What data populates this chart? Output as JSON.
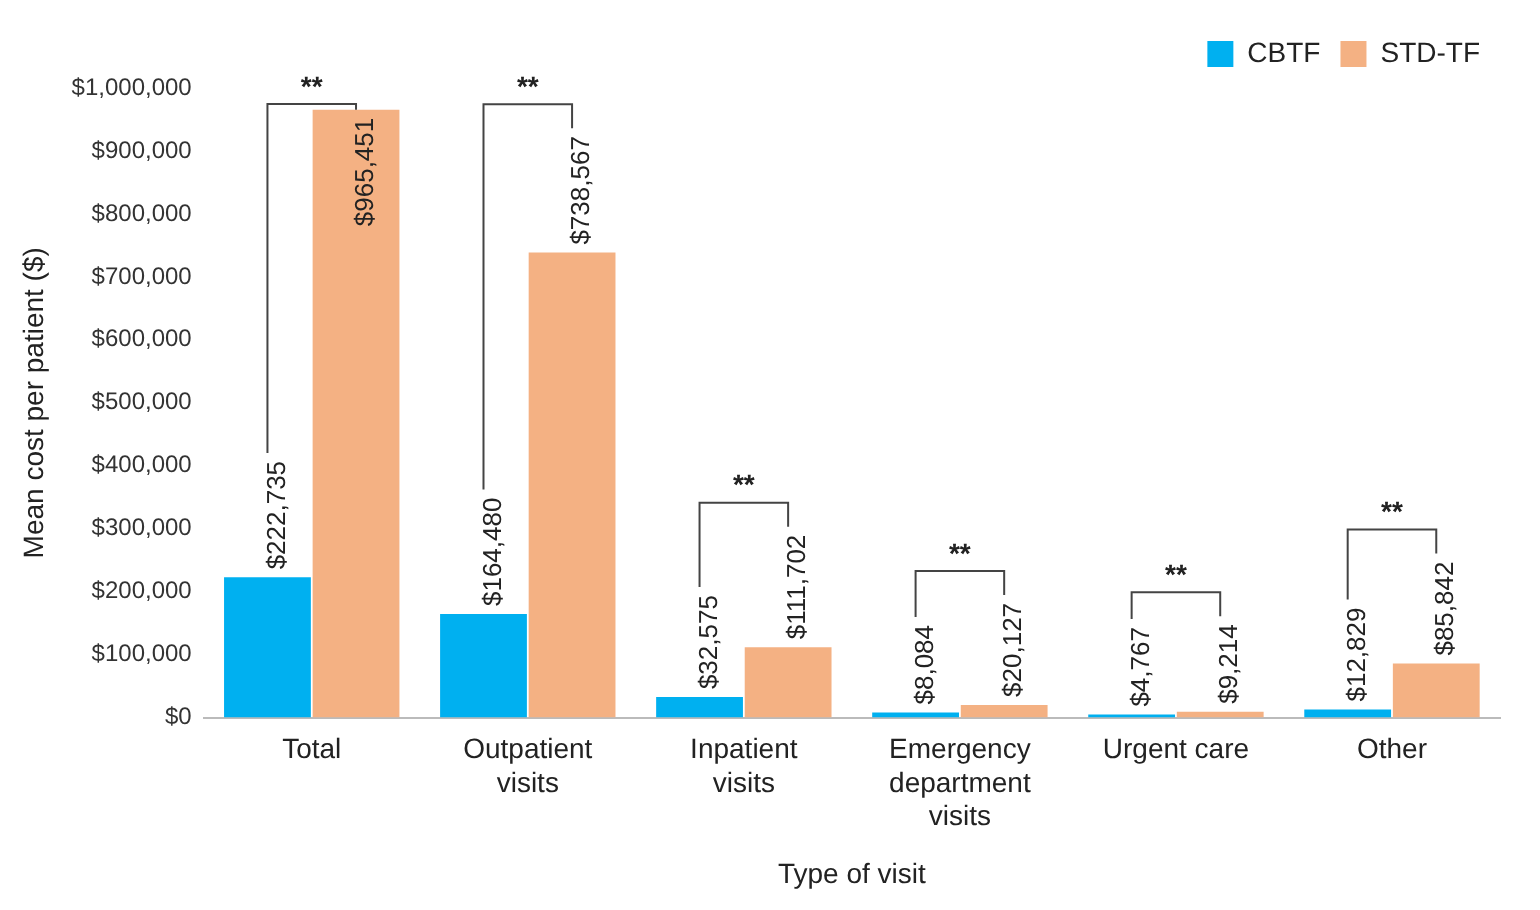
{
  "chart_data": {
    "type": "bar",
    "xlabel": "Type of visit",
    "ylabel": "Mean cost per patient ($)",
    "categories": [
      "Total",
      "Outpatient visits",
      "Inpatient visits",
      "Emergency department visits",
      "Urgent care",
      "Other"
    ],
    "series": [
      {
        "name": "CBTF",
        "color": "#00b0f0",
        "values": [
          222735,
          164480,
          32575,
          8084,
          4767,
          12829
        ],
        "value_labels": [
          "$222,735",
          "$164,480",
          "$32,575",
          "$8,084",
          "$4,767",
          "$12,829"
        ]
      },
      {
        "name": "STD-TF",
        "color": "#f4b183",
        "values": [
          965451,
          738567,
          111702,
          20127,
          9214,
          85842
        ],
        "value_labels": [
          "$965,451",
          "$738,567",
          "$111,702",
          "$20,127",
          "$9,214",
          "$85,842"
        ]
      }
    ],
    "ylim": [
      0,
      1000000
    ],
    "yticks": [
      {
        "value": 0,
        "label": "$0"
      },
      {
        "value": 100000,
        "label": "$100,000"
      },
      {
        "value": 200000,
        "label": "$200,000"
      },
      {
        "value": 300000,
        "label": "$300,000"
      },
      {
        "value": 400000,
        "label": "$400,000"
      },
      {
        "value": 500000,
        "label": "$500,000"
      },
      {
        "value": 600000,
        "label": "$600,000"
      },
      {
        "value": 700000,
        "label": "$700,000"
      },
      {
        "value": 800000,
        "label": "$800,000"
      },
      {
        "value": 900000,
        "label": "$900,000"
      },
      {
        "value": 1000000,
        "label": "$1,000,000"
      }
    ],
    "annotations": [
      "**",
      "**",
      "**",
      "**",
      "**",
      "**"
    ],
    "grid": false,
    "legend": "top right"
  }
}
